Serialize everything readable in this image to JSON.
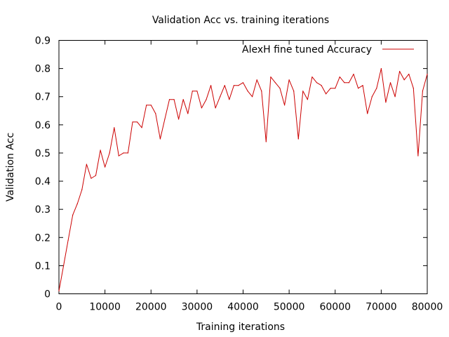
{
  "chart_data": {
    "type": "line",
    "title": "Validation Acc  vs. training iterations",
    "xlabel": "Training iterations",
    "ylabel": "Validation Acc",
    "xlim": [
      0,
      80000
    ],
    "ylim": [
      0,
      0.9
    ],
    "xticks": [
      0,
      10000,
      20000,
      30000,
      40000,
      50000,
      60000,
      70000,
      80000
    ],
    "yticks": [
      0,
      0.1,
      0.2,
      0.3,
      0.4,
      0.5,
      0.6,
      0.7,
      0.8,
      0.9
    ],
    "grid": false,
    "legend_position": "top-right",
    "series": [
      {
        "name": "AlexH fine tuned Accuracy",
        "color": "#cc0000",
        "x": [
          0,
          1000,
          2000,
          3000,
          4000,
          5000,
          6000,
          7000,
          8000,
          9000,
          10000,
          11000,
          12000,
          13000,
          14000,
          15000,
          16000,
          17000,
          18000,
          19000,
          20000,
          21000,
          22000,
          23000,
          24000,
          25000,
          26000,
          27000,
          28000,
          29000,
          30000,
          31000,
          32000,
          33000,
          34000,
          35000,
          36000,
          37000,
          38000,
          39000,
          40000,
          41000,
          42000,
          43000,
          44000,
          45000,
          46000,
          47000,
          48000,
          49000,
          50000,
          51000,
          52000,
          53000,
          54000,
          55000,
          56000,
          57000,
          58000,
          59000,
          60000,
          61000,
          62000,
          63000,
          64000,
          65000,
          66000,
          67000,
          68000,
          69000,
          70000,
          71000,
          72000,
          73000,
          74000,
          75000,
          76000,
          77000,
          78000,
          79000,
          80000
        ],
        "y": [
          0.01,
          0.1,
          0.19,
          0.28,
          0.32,
          0.37,
          0.46,
          0.41,
          0.42,
          0.51,
          0.45,
          0.5,
          0.59,
          0.49,
          0.5,
          0.5,
          0.61,
          0.61,
          0.59,
          0.67,
          0.67,
          0.64,
          0.55,
          0.62,
          0.69,
          0.69,
          0.62,
          0.69,
          0.64,
          0.72,
          0.72,
          0.66,
          0.69,
          0.74,
          0.66,
          0.7,
          0.74,
          0.69,
          0.74,
          0.74,
          0.75,
          0.72,
          0.7,
          0.76,
          0.72,
          0.54,
          0.77,
          0.75,
          0.73,
          0.67,
          0.76,
          0.72,
          0.55,
          0.72,
          0.69,
          0.77,
          0.75,
          0.74,
          0.71,
          0.73,
          0.73,
          0.77,
          0.75,
          0.75,
          0.78,
          0.73,
          0.74,
          0.64,
          0.7,
          0.73,
          0.8,
          0.68,
          0.75,
          0.7,
          0.79,
          0.76,
          0.78,
          0.73,
          0.49,
          0.72,
          0.78
        ]
      }
    ]
  }
}
